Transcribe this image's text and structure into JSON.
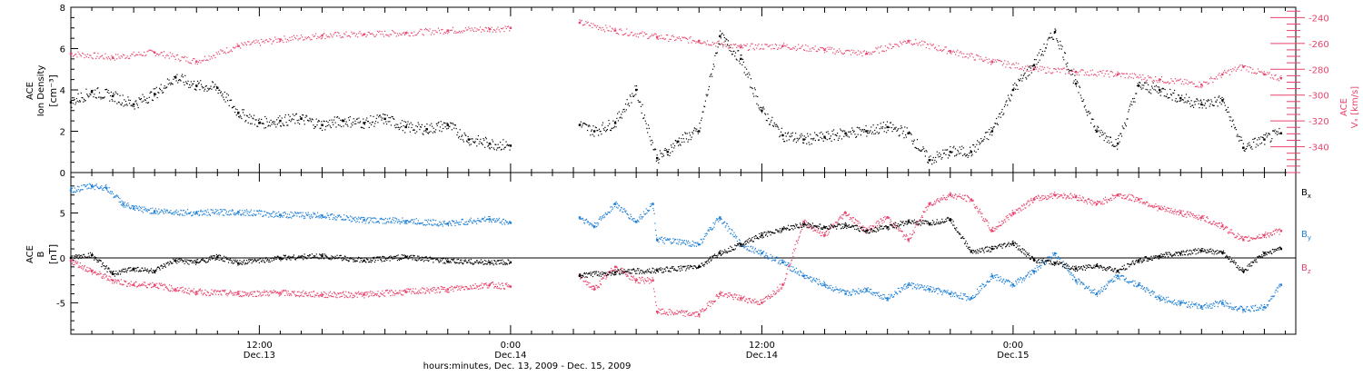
{
  "colors": {
    "ink": "#000000",
    "density": "#000000",
    "vx": "#e8436b",
    "bx": "#000000",
    "by": "#1e7fd6",
    "bz": "#e8436b"
  },
  "chart_data": [
    {
      "type": "scatter",
      "panel": "top",
      "ylabel": "ACE\nIon Density\n[cm⁻³]",
      "y2label": "ACE\nVₓ [km/s]",
      "ylim": [
        0,
        8
      ],
      "yticks": [
        "0",
        "2",
        "4",
        "6",
        "8"
      ],
      "y2lim": [
        -360,
        -232
      ],
      "y2ticks": [
        "-340",
        "-320",
        "-300",
        "-280",
        "-260",
        "-240"
      ],
      "xlim": [
        0,
        58.5
      ],
      "series": [
        {
          "key": "density",
          "axis": "left",
          "x": [
            0,
            1,
            2,
            3,
            4,
            5,
            6,
            7,
            8,
            9,
            10,
            11,
            12,
            13,
            14,
            15,
            16,
            17,
            18,
            19,
            20,
            21,
            24.3,
            25,
            26,
            27,
            28,
            28.5,
            29,
            30,
            31,
            32,
            33,
            34,
            35,
            36,
            37,
            38,
            39,
            40,
            41,
            42,
            43,
            44,
            45,
            46,
            47,
            48,
            49,
            50,
            51,
            52,
            53,
            54,
            55,
            56,
            57,
            57.8
          ],
          "y": [
            3.4,
            3.9,
            3.7,
            3.3,
            3.8,
            4.6,
            4.2,
            4.1,
            2.9,
            2.4,
            2.5,
            2.6,
            2.3,
            2.5,
            2.4,
            2.6,
            2.2,
            2.1,
            2.3,
            1.6,
            1.4,
            1.3,
            2.3,
            2.0,
            2.4,
            4.0,
            0.7,
            1.0,
            1.5,
            2.0,
            6.6,
            5.5,
            3.0,
            1.8,
            1.6,
            1.7,
            1.9,
            2.0,
            2.2,
            1.9,
            0.6,
            1.0,
            1.0,
            2.0,
            4.0,
            5.2,
            6.8,
            4.3,
            2.0,
            1.4,
            4.2,
            4.0,
            3.6,
            3.3,
            3.5,
            1.2,
            1.6,
            1.9
          ]
        },
        {
          "key": "vx",
          "axis": "right",
          "x": [
            0,
            2,
            4,
            6,
            8,
            10,
            12,
            14,
            16,
            18,
            20,
            21,
            24.3,
            26,
            28,
            30,
            32,
            34,
            36,
            38,
            40,
            42,
            44,
            46,
            48,
            50,
            52,
            54,
            55,
            56,
            57,
            57.8
          ],
          "y": [
            -268,
            -271,
            -267,
            -274,
            -262,
            -257,
            -254,
            -253,
            -252,
            -250,
            -249,
            -248,
            -244,
            -250,
            -255,
            -258,
            -263,
            -262,
            -265,
            -268,
            -258,
            -266,
            -274,
            -280,
            -282,
            -284,
            -288,
            -292,
            -284,
            -278,
            -284,
            -287
          ]
        }
      ]
    },
    {
      "type": "scatter",
      "panel": "bottom",
      "ylabel": "ACE\nB\n[nT]",
      "ylim": [
        -8.5,
        9.5
      ],
      "yticks": [
        "-5",
        "0",
        "5"
      ],
      "zero_line": true,
      "xlim": [
        0,
        58.5
      ],
      "xticks": [
        {
          "x": 9,
          "line1": "12:00",
          "line2": "Dec.13"
        },
        {
          "x": 21,
          "line1": "0:00",
          "line2": "Dec.14"
        },
        {
          "x": 33,
          "line1": "12:00",
          "line2": "Dec.14"
        },
        {
          "x": 45,
          "line1": "0:00",
          "line2": "Dec.15"
        }
      ],
      "xlabel": "hours:minutes, Dec. 13, 2009 - Dec. 15, 2009",
      "series": [
        {
          "key": "bx",
          "name": "B",
          "sub": "x",
          "x": [
            0,
            1,
            2,
            3,
            4,
            5,
            6,
            7,
            8,
            10,
            12,
            14,
            16,
            18,
            20,
            21,
            24.3,
            26,
            28,
            30,
            31,
            32,
            33,
            34,
            35,
            36,
            37,
            38,
            39,
            40,
            41,
            42,
            43,
            44,
            45,
            46,
            47,
            48,
            49,
            50,
            51,
            52,
            53,
            54,
            55,
            56,
            57,
            57.8
          ],
          "y": [
            0,
            0.3,
            -1.8,
            -1.2,
            -1.5,
            -0.3,
            -0.5,
            0.1,
            -0.6,
            0,
            0.2,
            -0.3,
            0.1,
            -0.4,
            -0.5,
            -0.5,
            -2.0,
            -1.6,
            -1.4,
            -1.0,
            0.5,
            1.5,
            2.5,
            3.2,
            3.7,
            3.4,
            3.6,
            3.0,
            3.4,
            4.0,
            3.8,
            4.3,
            0.7,
            1.0,
            1.6,
            -0.2,
            -0.6,
            -1.2,
            -0.9,
            -1.5,
            -0.3,
            0.2,
            0.5,
            0.8,
            0.6,
            -1.5,
            0.5,
            1.0
          ]
        },
        {
          "key": "by",
          "name": "B",
          "sub": "y",
          "x": [
            0,
            1,
            1.7,
            2.5,
            3,
            4,
            6,
            8,
            10,
            12,
            14,
            16,
            18,
            20,
            21,
            24.3,
            25,
            26,
            27,
            27.8,
            28,
            30,
            31,
            32,
            33,
            34,
            35,
            36,
            37,
            38,
            39,
            40,
            41,
            42,
            43,
            44,
            45,
            46,
            47,
            48,
            49,
            50,
            51,
            52,
            53,
            54,
            55,
            56,
            57,
            57.8
          ],
          "y": [
            7.5,
            8.0,
            7.8,
            6.0,
            5.5,
            5.2,
            5.0,
            5.1,
            4.8,
            4.7,
            4.2,
            4.1,
            3.8,
            4.3,
            3.9,
            4.5,
            3.5,
            6.0,
            4.0,
            6.0,
            2.0,
            1.5,
            4.5,
            1.5,
            0.5,
            -0.5,
            -2.0,
            -3.0,
            -4.0,
            -3.5,
            -4.5,
            -3.0,
            -3.5,
            -4.0,
            -4.5,
            -2.0,
            -3.0,
            -1.5,
            0.5,
            -2.5,
            -4.0,
            -2.0,
            -3.0,
            -4.5,
            -5.0,
            -5.5,
            -5.0,
            -5.8,
            -5.5,
            -3.0
          ]
        },
        {
          "key": "bz",
          "name": "B",
          "sub": "z",
          "x": [
            0,
            1,
            2,
            3,
            4,
            5,
            6,
            8,
            10,
            12,
            14,
            16,
            18,
            20,
            21,
            24.3,
            25,
            26,
            27,
            27.8,
            28,
            30,
            31,
            32,
            33,
            34,
            35,
            36,
            37,
            38,
            39,
            40,
            41,
            42,
            43,
            44,
            45,
            46,
            47,
            48,
            49,
            50,
            51,
            52,
            53,
            54,
            55,
            56,
            57,
            57.8
          ],
          "y": [
            -0.3,
            -1.5,
            -2.5,
            -3.0,
            -3.0,
            -3.5,
            -3.8,
            -4.0,
            -3.9,
            -4.1,
            -4.1,
            -3.8,
            -3.5,
            -3.0,
            -3.2,
            -2.0,
            -3.5,
            -1.0,
            -2.5,
            -2.5,
            -6.0,
            -6.3,
            -4.0,
            -4.5,
            -5.0,
            -3.0,
            4.0,
            2.5,
            5.0,
            3.0,
            4.5,
            2.0,
            6.0,
            7.0,
            6.5,
            3.0,
            5.0,
            6.5,
            7.0,
            6.8,
            6.0,
            7.0,
            6.5,
            5.5,
            5.0,
            4.5,
            3.5,
            2.0,
            2.5,
            3.0
          ]
        }
      ]
    }
  ]
}
